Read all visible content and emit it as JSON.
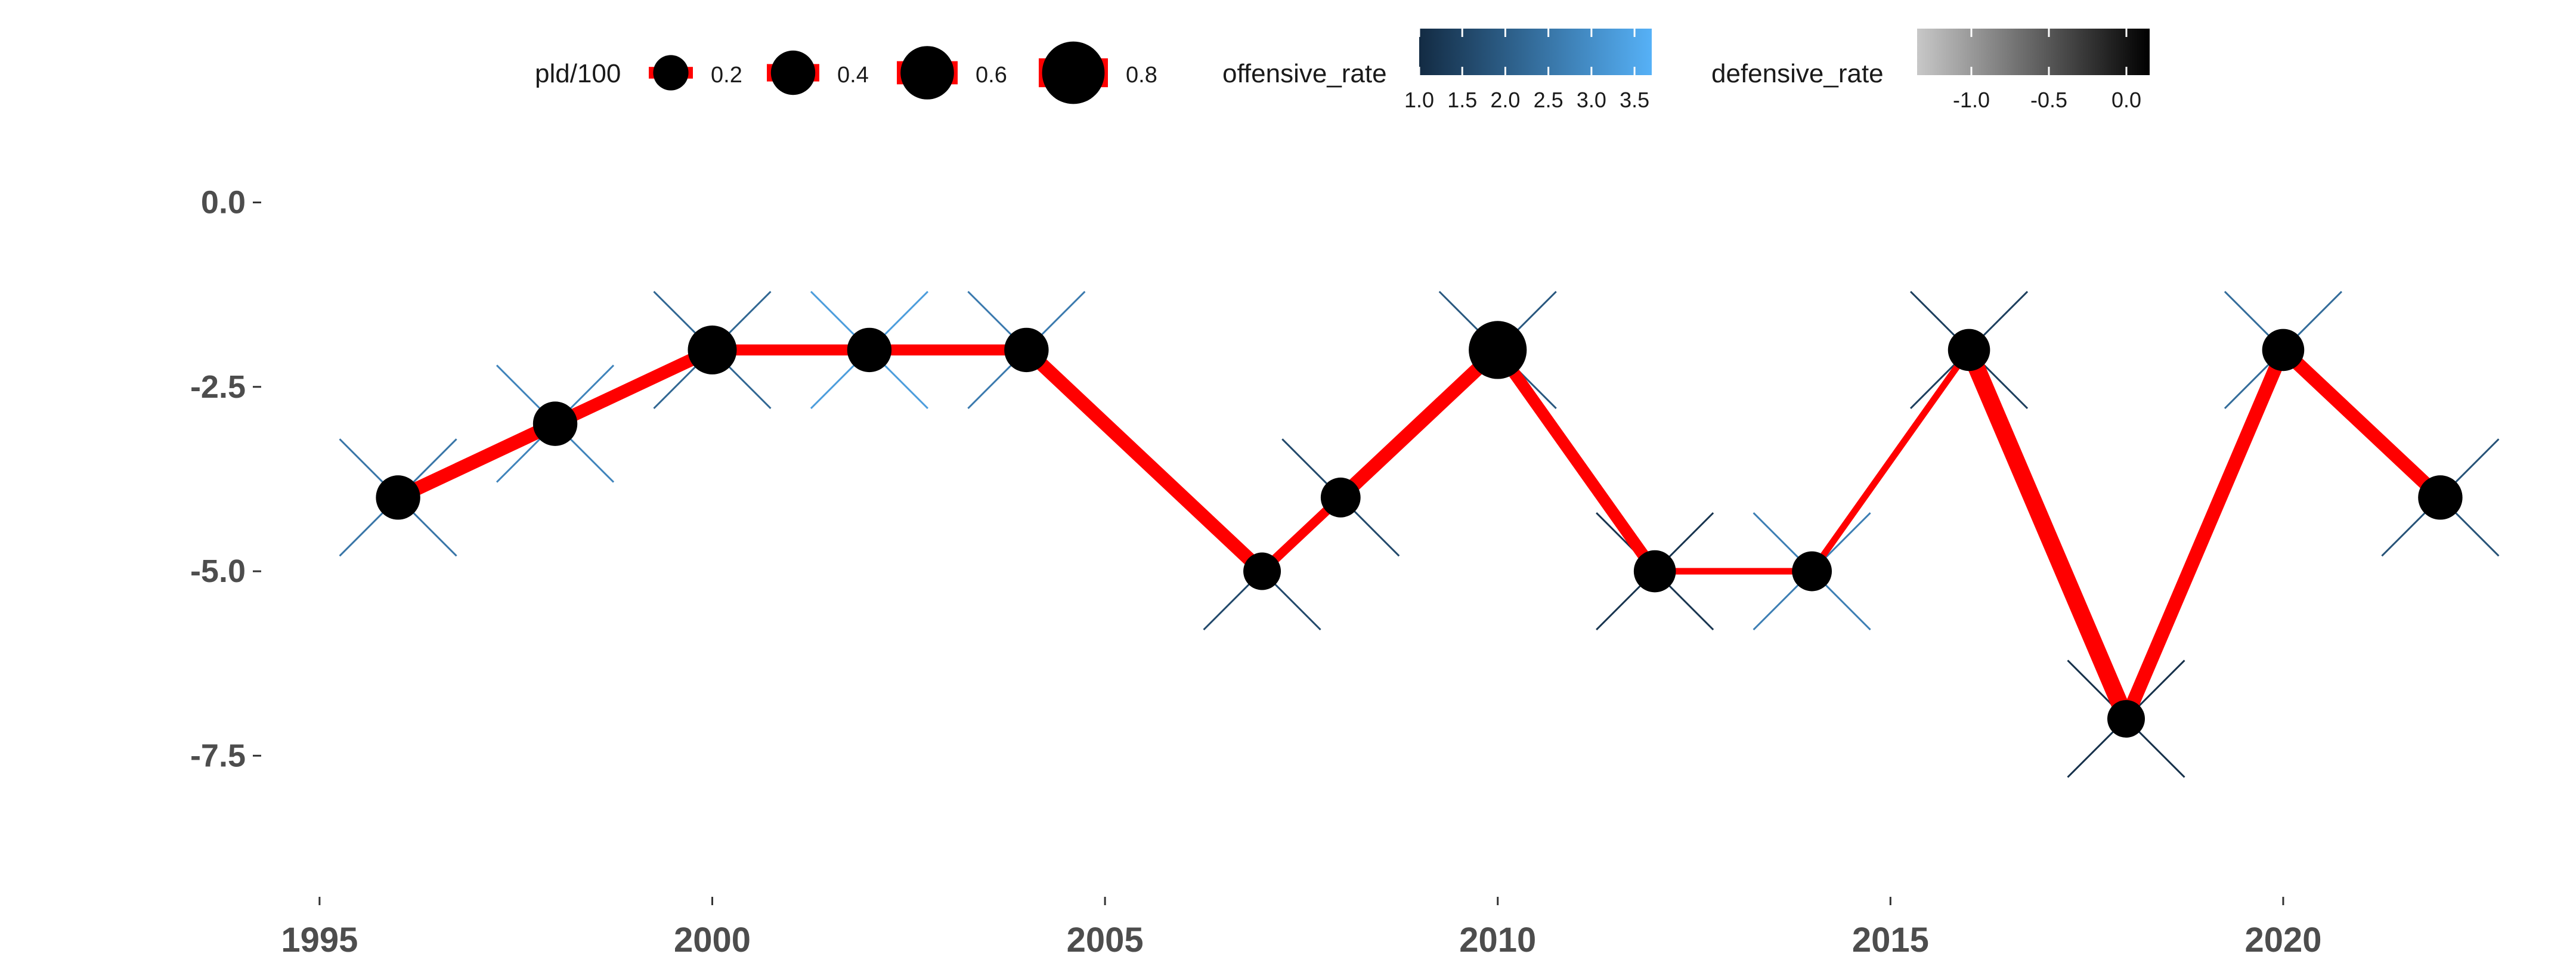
{
  "chart_data": {
    "type": "line",
    "x": [
      1996,
      1998,
      2000,
      2002,
      2004,
      2007,
      2008,
      2010,
      2012,
      2014,
      2016,
      2018,
      2020,
      2022
    ],
    "y": [
      -4,
      -3,
      -2,
      -2,
      -2,
      -5,
      -4,
      -2,
      -5,
      -5,
      -2,
      -7,
      -2,
      -4
    ],
    "pld_100": [
      0.4,
      0.4,
      0.5,
      0.4,
      0.4,
      0.25,
      0.3,
      0.7,
      0.35,
      0.3,
      0.35,
      0.25,
      0.35,
      0.4
    ],
    "segment_width_value": [
      0.6,
      0.55,
      0.45,
      0.45,
      0.6,
      0.35,
      0.6,
      0.5,
      0.2,
      0.2,
      0.8,
      0.6,
      0.6
    ],
    "offensive_rate": [
      2.5,
      2.8,
      2.2,
      3.3,
      2.6,
      1.6,
      1.6,
      1.9,
      1.2,
      2.7,
      1.4,
      1.1,
      2.3,
      1.8
    ],
    "defensive_rate": [
      -0.6,
      -0.5,
      -0.3,
      -0.4,
      -0.4,
      -0.8,
      -0.2,
      -0.1,
      -1.2,
      -1.1,
      -0.6,
      -0.9,
      -0.3,
      -0.2
    ],
    "xlim": [
      1994.5,
      2023.5
    ],
    "ylim": [
      -9.3,
      0.4
    ],
    "x_ticks": [
      1995,
      2000,
      2005,
      2010,
      2015,
      2020
    ],
    "y_ticks": [
      0,
      -2.5,
      -5,
      -7.5
    ],
    "x_tick_labels": [
      "1995",
      "2000",
      "2005",
      "2010",
      "2015",
      "2020"
    ],
    "y_tick_labels": [
      "0.0",
      "-2.5",
      "-5.0",
      "-7.5"
    ],
    "grid": false,
    "legend_position": "top",
    "colors": {
      "line": "#ff0000",
      "point": "#000000",
      "offensive_low": "#132b43",
      "offensive_high": "#56b1f7",
      "defensive_low": "#c8c8c8",
      "defensive_high": "#000000"
    },
    "legend": {
      "size": {
        "title": "pld/100",
        "values": [
          0.2,
          0.4,
          0.6,
          0.8
        ],
        "labels": [
          "0.2",
          "0.4",
          "0.6",
          "0.8"
        ]
      },
      "offensive": {
        "title": "offensive_rate",
        "range": [
          1.0,
          3.7
        ],
        "ticks": [
          1.0,
          1.5,
          2.0,
          2.5,
          3.0,
          3.5
        ],
        "labels": [
          "1.0",
          "1.5",
          "2.0",
          "2.5",
          "3.0",
          "3.5"
        ]
      },
      "defensive": {
        "title": "defensive_rate",
        "range": [
          -1.35,
          0.15
        ],
        "ticks": [
          -1.0,
          -0.5,
          0.0
        ],
        "labels": [
          "-1.0",
          "-0.5",
          "0.0"
        ]
      }
    }
  }
}
